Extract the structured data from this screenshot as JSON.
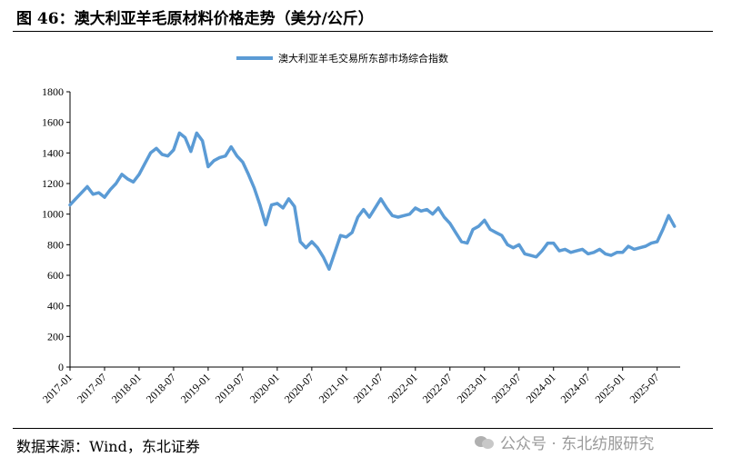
{
  "figure": {
    "title": "图 46：澳大利亚羊毛原材料价格走势（美分/公斤）",
    "source": "数据来源：Wind，东北证券",
    "watermark": "公众号 · 东北纺服研究"
  },
  "chart_data": {
    "type": "line",
    "title": "",
    "xlabel": "",
    "ylabel": "",
    "ylim": [
      0,
      1800
    ],
    "yticks": [
      0,
      200,
      400,
      600,
      800,
      1000,
      1200,
      1400,
      1600,
      1800
    ],
    "xlim": [
      "2017-01",
      "2025-11"
    ],
    "xticks": [
      "2017-01",
      "2017-07",
      "2018-01",
      "2018-07",
      "2019-01",
      "2019-07",
      "2020-01",
      "2020-07",
      "2021-01",
      "2021-07",
      "2022-01",
      "2022-07",
      "2023-01",
      "2023-07",
      "2024-01",
      "2024-07",
      "2025-01",
      "2025-07"
    ],
    "legend_position": "top-center",
    "grid": false,
    "series": [
      {
        "name": "澳大利亚羊毛交易所东部市场综合指数",
        "color": "#5b9bd5",
        "points": [
          [
            "2017-01",
            1060
          ],
          [
            "2017-02",
            1100
          ],
          [
            "2017-03",
            1140
          ],
          [
            "2017-04",
            1180
          ],
          [
            "2017-05",
            1130
          ],
          [
            "2017-06",
            1140
          ],
          [
            "2017-07",
            1110
          ],
          [
            "2017-08",
            1160
          ],
          [
            "2017-09",
            1200
          ],
          [
            "2017-10",
            1260
          ],
          [
            "2017-11",
            1230
          ],
          [
            "2017-12",
            1210
          ],
          [
            "2018-01",
            1260
          ],
          [
            "2018-02",
            1330
          ],
          [
            "2018-03",
            1400
          ],
          [
            "2018-04",
            1430
          ],
          [
            "2018-05",
            1390
          ],
          [
            "2018-06",
            1380
          ],
          [
            "2018-07",
            1420
          ],
          [
            "2018-08",
            1530
          ],
          [
            "2018-09",
            1500
          ],
          [
            "2018-10",
            1410
          ],
          [
            "2018-11",
            1530
          ],
          [
            "2018-12",
            1480
          ],
          [
            "2019-01",
            1310
          ],
          [
            "2019-02",
            1350
          ],
          [
            "2019-03",
            1370
          ],
          [
            "2019-04",
            1380
          ],
          [
            "2019-05",
            1440
          ],
          [
            "2019-06",
            1380
          ],
          [
            "2019-07",
            1340
          ],
          [
            "2019-08",
            1260
          ],
          [
            "2019-09",
            1170
          ],
          [
            "2019-10",
            1060
          ],
          [
            "2019-11",
            930
          ],
          [
            "2019-12",
            1060
          ],
          [
            "2020-01",
            1070
          ],
          [
            "2020-02",
            1040
          ],
          [
            "2020-03",
            1100
          ],
          [
            "2020-04",
            1050
          ],
          [
            "2020-05",
            820
          ],
          [
            "2020-06",
            780
          ],
          [
            "2020-07",
            820
          ],
          [
            "2020-08",
            780
          ],
          [
            "2020-09",
            720
          ],
          [
            "2020-10",
            640
          ],
          [
            "2020-11",
            750
          ],
          [
            "2020-12",
            860
          ],
          [
            "2021-01",
            850
          ],
          [
            "2021-02",
            880
          ],
          [
            "2021-03",
            980
          ],
          [
            "2021-04",
            1030
          ],
          [
            "2021-05",
            980
          ],
          [
            "2021-06",
            1040
          ],
          [
            "2021-07",
            1100
          ],
          [
            "2021-08",
            1040
          ],
          [
            "2021-09",
            990
          ],
          [
            "2021-10",
            980
          ],
          [
            "2021-11",
            990
          ],
          [
            "2021-12",
            1000
          ],
          [
            "2022-01",
            1040
          ],
          [
            "2022-02",
            1020
          ],
          [
            "2022-03",
            1030
          ],
          [
            "2022-04",
            1000
          ],
          [
            "2022-05",
            1040
          ],
          [
            "2022-06",
            980
          ],
          [
            "2022-07",
            940
          ],
          [
            "2022-08",
            880
          ],
          [
            "2022-09",
            820
          ],
          [
            "2022-10",
            810
          ],
          [
            "2022-11",
            900
          ],
          [
            "2022-12",
            920
          ],
          [
            "2023-01",
            960
          ],
          [
            "2023-02",
            900
          ],
          [
            "2023-03",
            880
          ],
          [
            "2023-04",
            860
          ],
          [
            "2023-05",
            800
          ],
          [
            "2023-06",
            780
          ],
          [
            "2023-07",
            800
          ],
          [
            "2023-08",
            740
          ],
          [
            "2023-09",
            730
          ],
          [
            "2023-10",
            720
          ],
          [
            "2023-11",
            760
          ],
          [
            "2023-12",
            810
          ],
          [
            "2024-01",
            810
          ],
          [
            "2024-02",
            760
          ],
          [
            "2024-03",
            770
          ],
          [
            "2024-04",
            750
          ],
          [
            "2024-05",
            760
          ],
          [
            "2024-06",
            770
          ],
          [
            "2024-07",
            740
          ],
          [
            "2024-08",
            750
          ],
          [
            "2024-09",
            770
          ],
          [
            "2024-10",
            740
          ],
          [
            "2024-11",
            730
          ],
          [
            "2024-12",
            750
          ],
          [
            "2025-01",
            750
          ],
          [
            "2025-02",
            790
          ],
          [
            "2025-03",
            770
          ],
          [
            "2025-04",
            780
          ],
          [
            "2025-05",
            790
          ],
          [
            "2025-06",
            810
          ],
          [
            "2025-07",
            820
          ],
          [
            "2025-08",
            900
          ],
          [
            "2025-09",
            990
          ],
          [
            "2025-10",
            920
          ]
        ]
      }
    ]
  }
}
